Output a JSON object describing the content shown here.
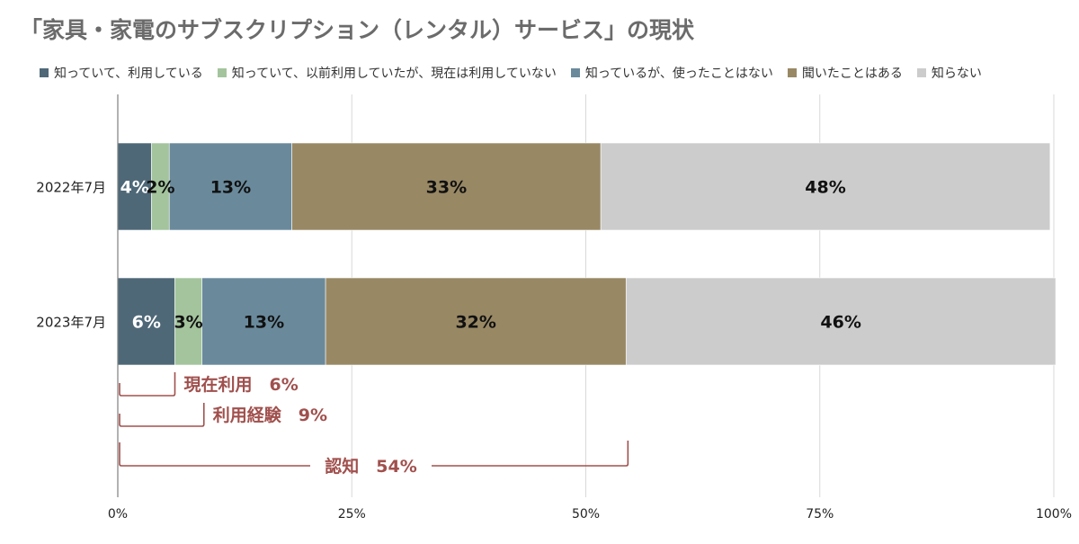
{
  "chart_data": {
    "type": "bar",
    "orientation": "horizontal",
    "stacked": true,
    "title": "「家具・家電のサブスクリプション（レンタル）サービス」の現状",
    "categories": [
      "2022年7月",
      "2023年7月"
    ],
    "x_ticks": [
      "0%",
      "25%",
      "50%",
      "75%",
      "100%"
    ],
    "xlim": [
      0,
      100
    ],
    "grid": true,
    "legend_position": "top",
    "series": [
      {
        "name": "知っていて、利用している",
        "color": "#4e6878",
        "label_color": "#ffffff",
        "values": [
          3.6,
          6.1
        ],
        "labels": [
          "4%",
          "6%"
        ]
      },
      {
        "name": "知っていて、以前利用していたが、現在は利用していない",
        "color": "#a3c49d",
        "label_color": "#111111",
        "values": [
          1.9,
          2.9
        ],
        "labels": [
          "2%",
          "3%"
        ]
      },
      {
        "name": "知っているが、使ったことはない",
        "color": "#6a8a9c",
        "label_color": "#111111",
        "values": [
          13.1,
          13.2
        ],
        "labels": [
          "13%",
          "13%"
        ]
      },
      {
        "name": "聞いたことはある",
        "color": "#988864",
        "label_color": "#111111",
        "values": [
          33.0,
          32.1
        ],
        "labels": [
          "33%",
          "32%"
        ]
      },
      {
        "name": "知らない",
        "color": "#cccccc",
        "label_color": "#111111",
        "values": [
          48.0,
          45.9
        ],
        "labels": [
          "48%",
          "46%"
        ]
      }
    ],
    "annotations": [
      {
        "label": "現在利用",
        "value_text": "6%",
        "to": 6.1
      },
      {
        "label": "利用経験",
        "value_text": "9%",
        "to": 9.2
      },
      {
        "label": "認知",
        "value_text": "54%",
        "to": 54.5
      }
    ],
    "annotation_color": "#a0504d"
  }
}
